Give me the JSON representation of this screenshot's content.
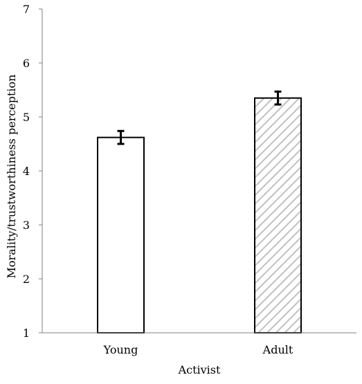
{
  "chart_data": {
    "type": "bar",
    "categories": [
      "Young",
      "Adult"
    ],
    "values": [
      4.62,
      5.35
    ],
    "error": [
      0.12,
      0.12
    ],
    "fills": [
      "plain",
      "hatched"
    ],
    "xlabel": "Activist",
    "ylabel": "Morality/trustworthiness  perception",
    "ylim": [
      1,
      7
    ],
    "yticks": [
      1,
      2,
      3,
      4,
      5,
      6,
      7
    ],
    "grid": false,
    "legend": "none"
  },
  "colors": {
    "bar_edge": "#000000",
    "bar_fill_plain": "#ffffff",
    "hatch": "#c0c0c0",
    "axis": "#808080"
  }
}
